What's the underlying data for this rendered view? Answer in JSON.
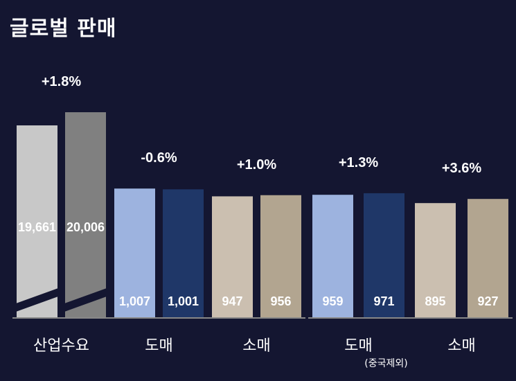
{
  "title": "글로벌 판매",
  "chart_data": {
    "type": "bar",
    "title": "글로벌 판매",
    "y_axis_broken": true,
    "groups": [
      {
        "label": "산업수요",
        "sublabel": "",
        "change": "+1.8%",
        "values": [
          19661,
          20006
        ],
        "value_labels": [
          "19,661",
          "20,006"
        ],
        "colors": [
          "#c8c8c8",
          "#808080"
        ]
      },
      {
        "label": "도매",
        "sublabel": "",
        "change": "-0.6%",
        "values": [
          1007,
          1001
        ],
        "value_labels": [
          "1,007",
          "1,001"
        ],
        "colors": [
          "#9db3df",
          "#1f3768"
        ]
      },
      {
        "label": "소매",
        "sublabel": "",
        "change": "+1.0%",
        "values": [
          947,
          956
        ],
        "value_labels": [
          "947",
          "956"
        ],
        "colors": [
          "#cbbfb0",
          "#b2a590"
        ]
      },
      {
        "label": "도매",
        "sublabel": "(중국제외)",
        "change": "+1.3%",
        "values": [
          959,
          971
        ],
        "value_labels": [
          "959",
          "971"
        ],
        "colors": [
          "#9db3df",
          "#1f3768"
        ]
      },
      {
        "label": "소매",
        "sublabel": "",
        "change": "+3.6%",
        "values": [
          895,
          927
        ],
        "value_labels": [
          "895",
          "927"
        ],
        "colors": [
          "#cbbfb0",
          "#b2a590"
        ]
      }
    ]
  }
}
